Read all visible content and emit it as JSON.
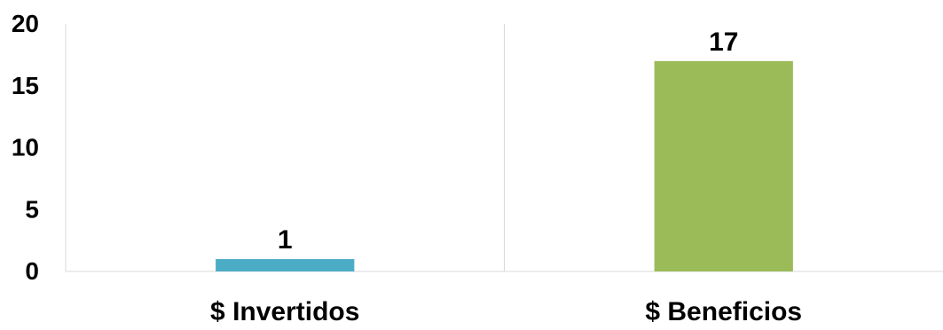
{
  "chart_data": {
    "type": "bar",
    "title": "",
    "xlabel": "",
    "ylabel": "",
    "categories": [
      "$ Invertidos",
      "$ Beneficios"
    ],
    "values": [
      1,
      17
    ],
    "data_labels": [
      "1",
      "17"
    ],
    "colors": [
      "#4BACC6",
      "#9BBB59"
    ],
    "ylim": [
      0,
      20
    ],
    "yticks": [
      0,
      5,
      10,
      15,
      20
    ],
    "ytick_labels": [
      "0",
      "5",
      "10",
      "15",
      "20"
    ],
    "grid": false,
    "category_separators": true,
    "legend": "none"
  }
}
